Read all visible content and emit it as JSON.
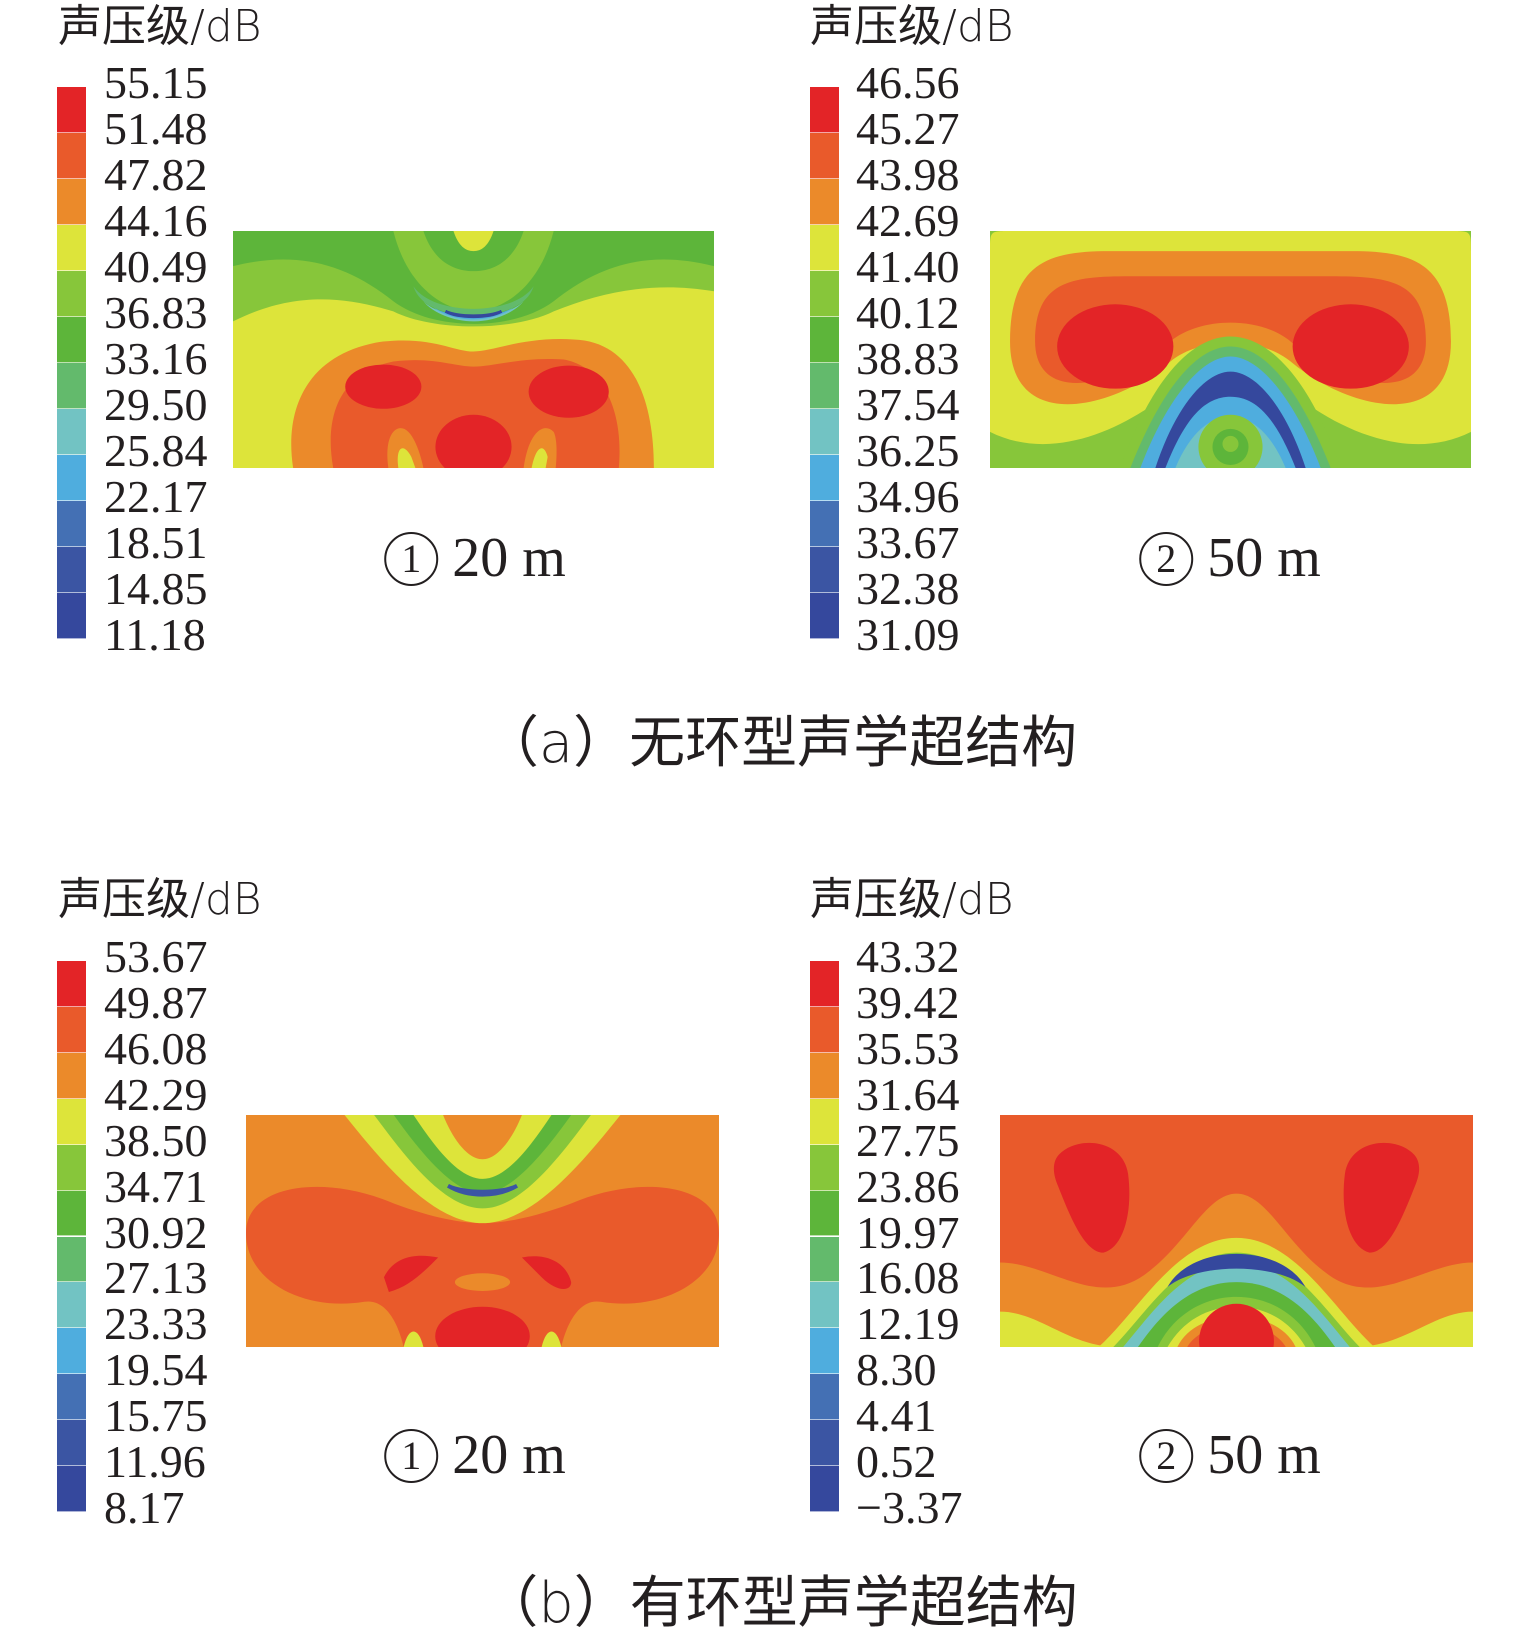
{
  "colors": [
    "#e32427",
    "#e95a2b",
    "#eb8a2a",
    "#dde43a",
    "#87c63a",
    "#5db53a",
    "#63ba6c",
    "#72c3c3",
    "#4fadde",
    "#4470b4",
    "#3b55a3",
    "#35489d"
  ],
  "chart_data": [
    {
      "type": "heatmap",
      "group": "a",
      "unit_label": "声压级/dB",
      "panel_label": {
        "num": "1",
        "text": "20 m"
      },
      "levels": [
        "55.15",
        "51.48",
        "47.82",
        "44.16",
        "40.49",
        "36.83",
        "33.16",
        "29.50",
        "25.84",
        "22.17",
        "18.51",
        "14.85",
        "11.18"
      ]
    },
    {
      "type": "heatmap",
      "group": "a",
      "unit_label": "声压级/dB",
      "panel_label": {
        "num": "2",
        "text": "50 m"
      },
      "levels": [
        "46.56",
        "45.27",
        "43.98",
        "42.69",
        "41.40",
        "40.12",
        "38.83",
        "37.54",
        "36.25",
        "34.96",
        "33.67",
        "32.38",
        "31.09"
      ]
    },
    {
      "type": "heatmap",
      "group": "b",
      "unit_label": "声压级/dB",
      "panel_label": {
        "num": "1",
        "text": "20 m"
      },
      "levels": [
        "53.67",
        "49.87",
        "46.08",
        "42.29",
        "38.50",
        "34.71",
        "30.92",
        "27.13",
        "23.33",
        "19.54",
        "15.75",
        "11.96",
        "8.17"
      ]
    },
    {
      "type": "heatmap",
      "group": "b",
      "unit_label": "声压级/dB",
      "panel_label": {
        "num": "2",
        "text": "50 m"
      },
      "levels": [
        "43.32",
        "39.42",
        "35.53",
        "31.64",
        "27.75",
        "23.86",
        "19.97",
        "16.08",
        "12.19",
        "8.30",
        "4.41",
        "0.52",
        "−3.37"
      ]
    }
  ],
  "captions": {
    "a": "（a）无环型声学超结构",
    "b": "（b）有环型声学超结构"
  }
}
